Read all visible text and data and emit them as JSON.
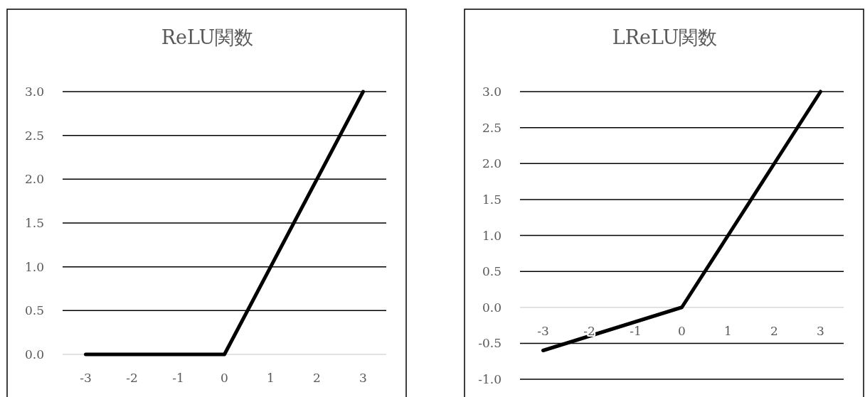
{
  "chart_data": [
    {
      "type": "line",
      "title": "ReLU関数",
      "categories": [
        "-3",
        "-2",
        "-1",
        "0",
        "1",
        "2",
        "3"
      ],
      "series": [
        {
          "color": "#000000",
          "values": [
            0,
            0,
            0,
            0,
            1,
            2,
            3
          ]
        }
      ],
      "ylim": [
        0,
        3
      ],
      "yticks": [
        {
          "value": 0,
          "label": "0.0"
        },
        {
          "value": 0.5,
          "label": "0.5"
        },
        {
          "value": 1,
          "label": "1.0"
        },
        {
          "value": 1.5,
          "label": "1.5"
        },
        {
          "value": 2,
          "label": "2.0"
        },
        {
          "value": 2.5,
          "label": "2.5"
        },
        {
          "value": 3,
          "label": "3.0"
        }
      ],
      "grid": "y",
      "line_style": "solid",
      "marker": "none"
    },
    {
      "type": "line",
      "title": "LReLU関数",
      "categories": [
        "-3",
        "-2",
        "-1",
        "0",
        "1",
        "2",
        "3"
      ],
      "series": [
        {
          "color": "#000000",
          "values": [
            -0.6,
            -0.4,
            -0.2,
            0,
            1,
            2,
            3
          ]
        }
      ],
      "ylim": [
        -1,
        3
      ],
      "yticks": [
        {
          "value": -1,
          "label": "-1.0"
        },
        {
          "value": -0.5,
          "label": "-0.5"
        },
        {
          "value": 0,
          "label": "0.0"
        },
        {
          "value": 0.5,
          "label": "0.5"
        },
        {
          "value": 1,
          "label": "1.0"
        },
        {
          "value": 1.5,
          "label": "1.5"
        },
        {
          "value": 2,
          "label": "2.0"
        },
        {
          "value": 2.5,
          "label": "2.5"
        },
        {
          "value": 3,
          "label": "3.0"
        }
      ],
      "grid": "y",
      "line_style": "solid",
      "marker": "none"
    }
  ]
}
